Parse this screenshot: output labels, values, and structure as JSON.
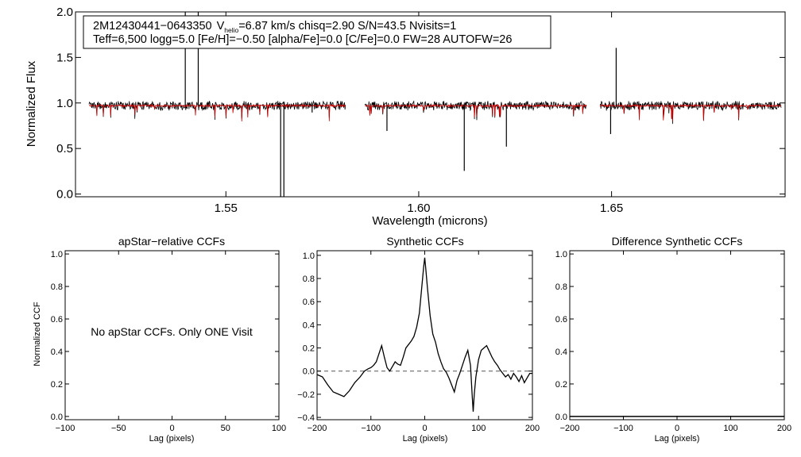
{
  "colors": {
    "axis": "#000000",
    "observed": "#000000",
    "model": "#d00000",
    "zero_line": "#555555",
    "background": "#ffffff"
  },
  "chart_data": [
    {
      "type": "line",
      "id": "spectrum",
      "xlabel": "Wavelength (microns)",
      "ylabel": "Normalized Flux",
      "xlim": [
        1.511,
        1.695
      ],
      "ylim": [
        -0.03,
        2.0
      ],
      "x_ticks": [
        "1.55",
        "1.60",
        "1.65"
      ],
      "y_ticks": [
        "0.0",
        "0.5",
        "1.0",
        "1.5",
        "2.0"
      ],
      "chips": [
        [
          1.5145,
          1.581
        ],
        [
          1.586,
          1.6435
        ],
        [
          1.647,
          1.694
        ]
      ],
      "continuum_level": 0.97,
      "info_box": {
        "line1_star": "2M12430441−0643350",
        "line1_v_prefix": "V",
        "line1_v_sub": "helio",
        "line1_rest": "=6.87 km/s  chisq=2.90  S/N=43.5  Nvisits=1",
        "line2": "Teff=6,500 logg=5.0 [Fe/H]=−0.50 [alpha/Fe]=0.0 [C/Fe]=0.0 FW=28 AUTOFW=26"
      },
      "series": [
        {
          "name": "observed spectrum",
          "color": "#000000"
        },
        {
          "name": "best-fit model",
          "color": "#d00000"
        }
      ]
    },
    {
      "type": "line",
      "id": "apstar_ccf",
      "title": "apStar−relative CCFs",
      "xlabel": "Lag (pixels)",
      "ylabel": "Normalized CCF",
      "xlim": [
        -100,
        100
      ],
      "ylim": [
        -0.02,
        1.02
      ],
      "x_ticks": [
        "−100",
        "−50",
        "0",
        "50",
        "100"
      ],
      "y_ticks": [
        "0.0",
        "0.2",
        "0.4",
        "0.6",
        "0.8",
        "1.0"
      ],
      "annotation": "No apStar CCFs.  Only ONE Visit",
      "series": []
    },
    {
      "type": "line",
      "id": "synthetic_ccf",
      "title": "Synthetic CCFs",
      "xlabel": "Lag (pixels)",
      "xlim": [
        -200,
        200
      ],
      "ylim": [
        -0.42,
        1.04
      ],
      "x_ticks": [
        "−200",
        "−100",
        "0",
        "100",
        "200"
      ],
      "y_ticks": [
        "−0.4",
        "−0.2",
        "0.0",
        "0.2",
        "0.4",
        "0.6",
        "0.8",
        "1.0"
      ],
      "zero_line": 0.0,
      "series": [
        {
          "name": "synthetic CCF",
          "x": [
            -200,
            -190,
            -180,
            -170,
            -160,
            -150,
            -140,
            -130,
            -120,
            -112,
            -105,
            -100,
            -95,
            -90,
            -85,
            -80,
            -75,
            -70,
            -65,
            -60,
            -55,
            -50,
            -45,
            -40,
            -35,
            -30,
            -25,
            -20,
            -15,
            -10,
            -5,
            -2,
            0,
            2,
            5,
            10,
            15,
            20,
            25,
            30,
            35,
            40,
            45,
            50,
            55,
            60,
            65,
            70,
            75,
            80,
            85,
            88,
            90,
            92,
            95,
            100,
            105,
            110,
            115,
            120,
            125,
            130,
            135,
            140,
            145,
            150,
            155,
            160,
            165,
            170,
            175,
            180,
            185,
            190,
            195,
            200
          ],
          "y": [
            -0.03,
            -0.05,
            -0.12,
            -0.18,
            -0.2,
            -0.22,
            -0.17,
            -0.1,
            -0.05,
            0.0,
            0.02,
            0.03,
            0.05,
            0.08,
            0.15,
            0.22,
            0.12,
            0.03,
            0.0,
            0.04,
            0.08,
            0.06,
            0.05,
            0.12,
            0.2,
            0.23,
            0.26,
            0.3,
            0.38,
            0.5,
            0.75,
            0.9,
            0.98,
            0.88,
            0.72,
            0.48,
            0.32,
            0.25,
            0.15,
            0.08,
            0.02,
            -0.01,
            -0.06,
            -0.12,
            -0.18,
            -0.08,
            -0.02,
            0.05,
            0.12,
            0.18,
            0.05,
            -0.2,
            -0.35,
            -0.2,
            -0.05,
            0.1,
            0.18,
            0.2,
            0.22,
            0.17,
            0.12,
            0.08,
            0.05,
            0.01,
            -0.02,
            -0.05,
            -0.03,
            -0.07,
            -0.02,
            -0.05,
            -0.09,
            -0.04,
            -0.1,
            -0.06,
            -0.02,
            -0.02
          ]
        }
      ]
    },
    {
      "type": "line",
      "id": "difference_ccf",
      "title": "Difference Synthetic CCFs",
      "xlabel": "Lag (pixels)",
      "xlim": [
        -200,
        200
      ],
      "ylim": [
        -0.02,
        1.02
      ],
      "x_ticks": [
        "−200",
        "−100",
        "0",
        "100",
        "200"
      ],
      "y_ticks": [
        "0.0",
        "0.2",
        "0.4",
        "0.6",
        "0.8",
        "1.0"
      ],
      "series": [
        {
          "name": "difference CCF",
          "x": [
            -200,
            200
          ],
          "y": [
            0.0,
            0.0
          ]
        }
      ]
    }
  ]
}
